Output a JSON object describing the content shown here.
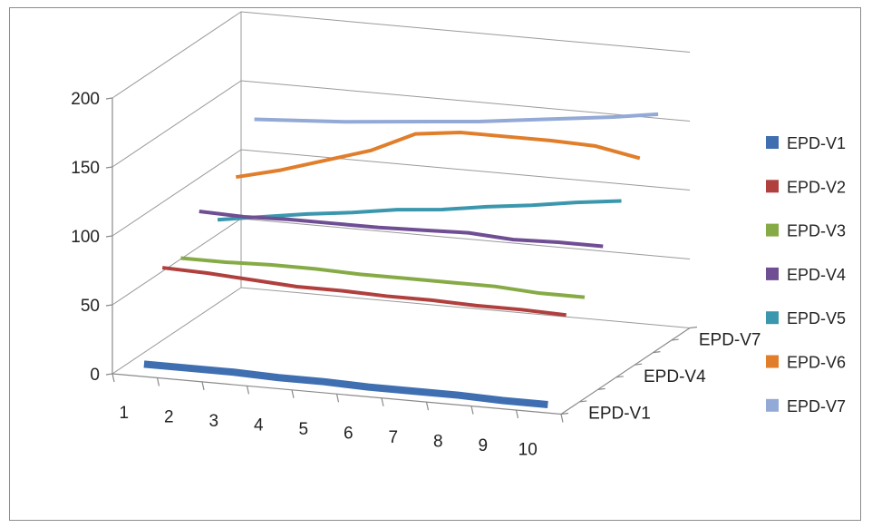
{
  "chart_data": {
    "type": "line",
    "subtype": "3d-line",
    "title": "",
    "xlabel": "",
    "ylabel": "",
    "ylim": [
      0,
      200
    ],
    "yticks": [
      0,
      50,
      100,
      150,
      200
    ],
    "categories": [
      "1",
      "2",
      "3",
      "4",
      "5",
      "6",
      "7",
      "8",
      "9",
      "10"
    ],
    "depth_labels": [
      "EPD-V1",
      "EPD-V4",
      "EPD-V7"
    ],
    "legend_position": "right",
    "grid": true,
    "series": [
      {
        "name": "EPD-V1",
        "color": "#3F6FB0",
        "values": [
          4,
          4,
          4,
          3,
          3,
          2,
          2,
          2,
          1,
          1
        ]
      },
      {
        "name": "EPD-V2",
        "color": "#B0403E",
        "values": [
          65,
          64,
          62,
          60,
          60,
          59,
          59,
          58,
          58,
          57
        ]
      },
      {
        "name": "EPD-V3",
        "color": "#86AB46",
        "values": [
          63,
          63,
          64,
          64,
          63,
          63,
          63,
          63,
          61,
          61
        ]
      },
      {
        "name": "EPD-V4",
        "color": "#6F4E93",
        "values": [
          88,
          87,
          88,
          88,
          88,
          89,
          90,
          88,
          89,
          89
        ]
      },
      {
        "name": "EPD-V5",
        "color": "#3B97AD",
        "values": [
          73,
          78,
          83,
          87,
          92,
          95,
          100,
          104,
          109,
          113
        ]
      },
      {
        "name": "EPD-V6",
        "color": "#E07E2B",
        "values": [
          95,
          103,
          113,
          123,
          138,
          142,
          142,
          142,
          141,
          135
        ]
      },
      {
        "name": "EPD-V7",
        "color": "#93A9D6",
        "values": [
          128,
          130,
          132,
          135,
          138,
          141,
          145,
          149,
          153,
          158
        ]
      }
    ]
  }
}
